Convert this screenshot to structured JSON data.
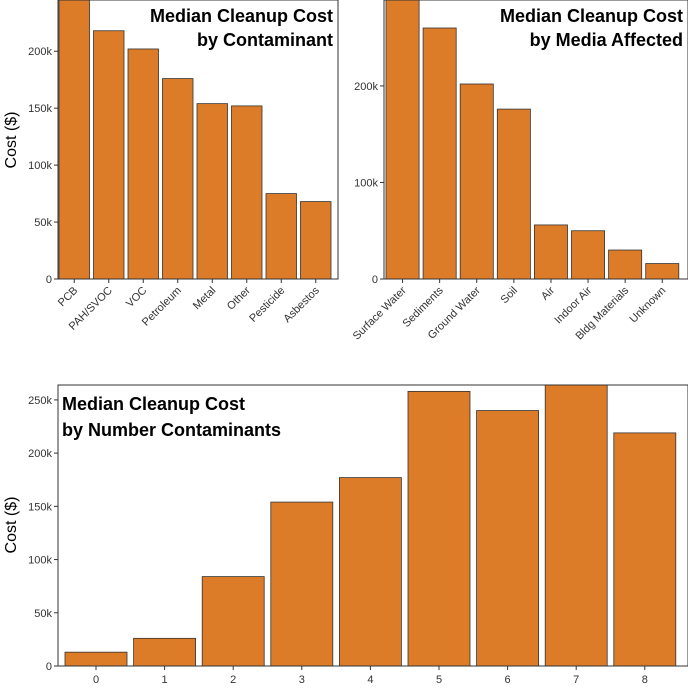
{
  "chart_data": [
    {
      "type": "bar",
      "title_lines": [
        "Median Cleanup Cost",
        "by Contaminant"
      ],
      "xlabel": "",
      "ylabel": "Cost ($)",
      "categories": [
        "PCB",
        "PAH/SVOC",
        "VOC",
        "Petroleum",
        "Metal",
        "Other",
        "Pesticide",
        "Asbestos"
      ],
      "values": [
        245000,
        218000,
        202000,
        176000,
        154000,
        152000,
        75000,
        68000
      ],
      "ylim": [
        0,
        245000
      ],
      "yticks": [
        0,
        50000,
        100000,
        150000,
        200000
      ],
      "ytick_labels": [
        "0",
        "50k",
        "100k",
        "150k",
        "200k"
      ],
      "bar_color": "#dd7c28",
      "grid": false
    },
    {
      "type": "bar",
      "title_lines": [
        "Median Cleanup Cost",
        "by Media Affected"
      ],
      "xlabel": "",
      "ylabel": "",
      "categories": [
        "Surface Water",
        "Sediments",
        "Ground Water",
        "Soil",
        "Air",
        "Indoor Air",
        "Bldg Materials",
        "Unknown"
      ],
      "values": [
        289000,
        260000,
        202000,
        176000,
        56000,
        50000,
        30000,
        16000
      ],
      "ylim": [
        0,
        289000
      ],
      "yticks": [
        0,
        100000,
        200000
      ],
      "ytick_labels": [
        "0",
        "100k",
        "200k"
      ],
      "bar_color": "#dd7c28",
      "grid": false
    },
    {
      "type": "bar",
      "title_lines": [
        "Median Cleanup Cost",
        "by Number Contaminants"
      ],
      "xlabel": "",
      "ylabel": "Cost ($)",
      "categories": [
        "0",
        "1",
        "2",
        "3",
        "4",
        "5",
        "6",
        "7",
        "8"
      ],
      "values": [
        13000,
        26000,
        84000,
        154000,
        177000,
        258000,
        240000,
        264000,
        219000
      ],
      "ylim": [
        0,
        264000
      ],
      "yticks": [
        0,
        50000,
        100000,
        150000,
        200000,
        250000
      ],
      "ytick_labels": [
        "0",
        "50k",
        "100k",
        "150k",
        "200k",
        "250k"
      ],
      "bar_color": "#dd7c28",
      "grid": false
    }
  ]
}
